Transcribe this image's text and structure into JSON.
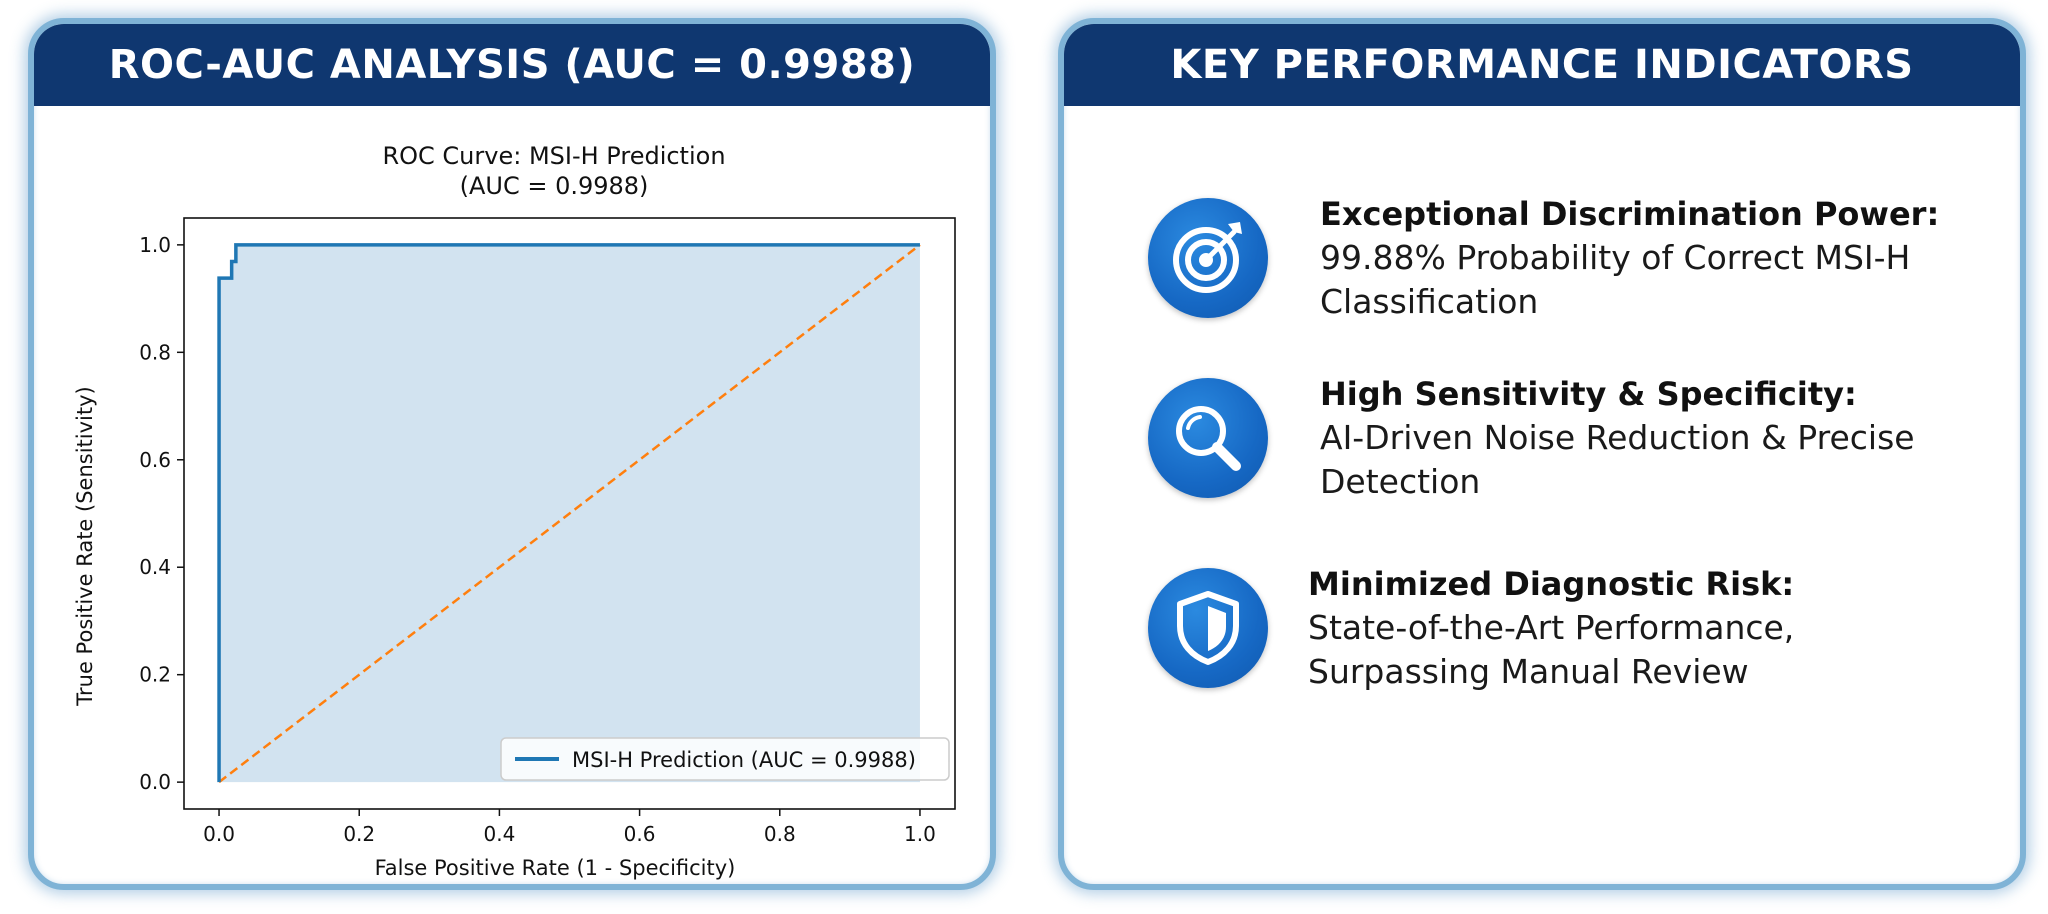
{
  "left_panel": {
    "header": "ROC-AUC ANALYSIS (AUC = 0.9988)"
  },
  "right_panel": {
    "header": "KEY PERFORMANCE INDICATORS",
    "kpis": [
      {
        "icon": "target-icon",
        "title": "Exceptional Discrimination Power:",
        "line1": "99.88% Probability of Correct MSI-H",
        "line2": "Classification"
      },
      {
        "icon": "magnifier-icon",
        "title": "High Sensitivity & Specificity:",
        "line1": "AI-Driven Noise Reduction & Precise",
        "line2": "Detection"
      },
      {
        "icon": "shield-icon",
        "title": "Minimized Diagnostic Risk:",
        "line1": "State-of-the-Art Performance,",
        "line2": "Surpassing Manual Review"
      }
    ]
  },
  "colors": {
    "header_bg": "#0f3770",
    "roc_line": "#1f77b4",
    "roc_fill": "#d2e3f0",
    "diagonal": "#ff7f0e",
    "icon_bg": "#1668c4",
    "panel_border": "#7fb3d6"
  },
  "chart_data": {
    "type": "line",
    "title": "ROC Curve: MSI-H Prediction",
    "subtitle": "(AUC = 0.9988)",
    "xlabel": "False Positive Rate (1 - Specificity)",
    "ylabel": "True Positive Rate (Sensitivity)",
    "xlim": [
      -0.05,
      1.05
    ],
    "ylim": [
      -0.05,
      1.05
    ],
    "xticks": [
      "0.0",
      "0.2",
      "0.4",
      "0.6",
      "0.8",
      "1.0"
    ],
    "yticks": [
      "0.0",
      "0.2",
      "0.4",
      "0.6",
      "0.8",
      "1.0"
    ],
    "legend_position": "lower-right",
    "series": [
      {
        "name": "MSI-H Prediction (AUC = 0.9988)",
        "style": "solid",
        "fill": true,
        "x": [
          0.0,
          0.0,
          0.0,
          0.018,
          0.018,
          0.024,
          0.024,
          0.03,
          0.03,
          1.0
        ],
        "y": [
          0.0,
          0.0,
          0.938,
          0.938,
          0.969,
          0.969,
          1.0,
          1.0,
          1.0,
          1.0
        ]
      },
      {
        "name": "",
        "style": "dashed",
        "x": [
          0.0,
          1.0
        ],
        "y": [
          0.0,
          1.0
        ]
      }
    ]
  }
}
